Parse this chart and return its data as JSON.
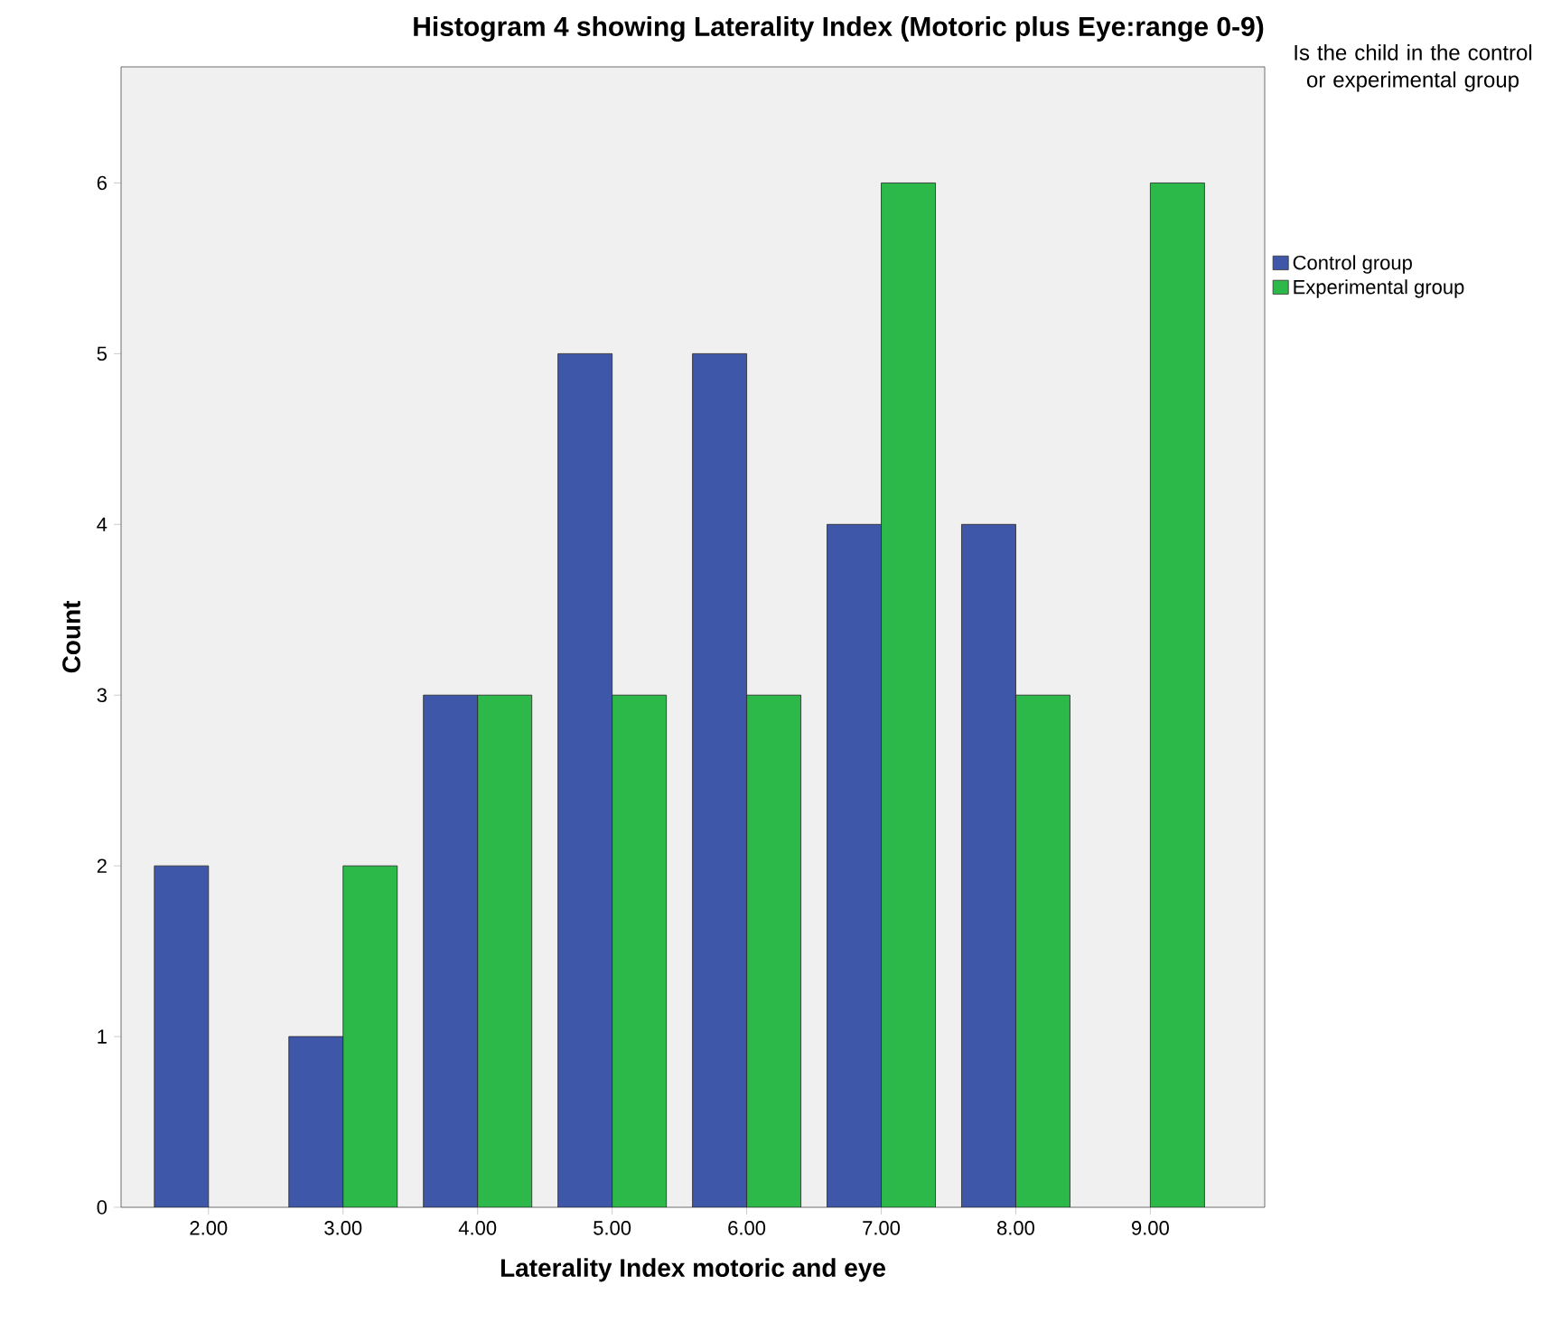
{
  "chart_data": {
    "type": "bar",
    "title": "Histogram 4 showing Laterality Index (Motoric plus Eye:range 0-9)",
    "xlabel": "Laterality Index motoric and eye",
    "ylabel": "Count",
    "legend_title": "Is the child in the control or experimental group",
    "categories": [
      "2.00",
      "3.00",
      "4.00",
      "5.00",
      "6.00",
      "7.00",
      "8.00",
      "9.00"
    ],
    "series": [
      {
        "name": "Control group",
        "color": "#3f57a8",
        "values": [
          2,
          1,
          3,
          5,
          5,
          4,
          4,
          null
        ]
      },
      {
        "name": "Experimental group",
        "color": "#2db84a",
        "values": [
          null,
          2,
          3,
          3,
          3,
          6,
          3,
          6
        ]
      }
    ],
    "ylim": [
      0,
      6.68
    ],
    "yticks": [
      0,
      1,
      2,
      3,
      4,
      5,
      6
    ],
    "grid": false,
    "legend": "right"
  }
}
